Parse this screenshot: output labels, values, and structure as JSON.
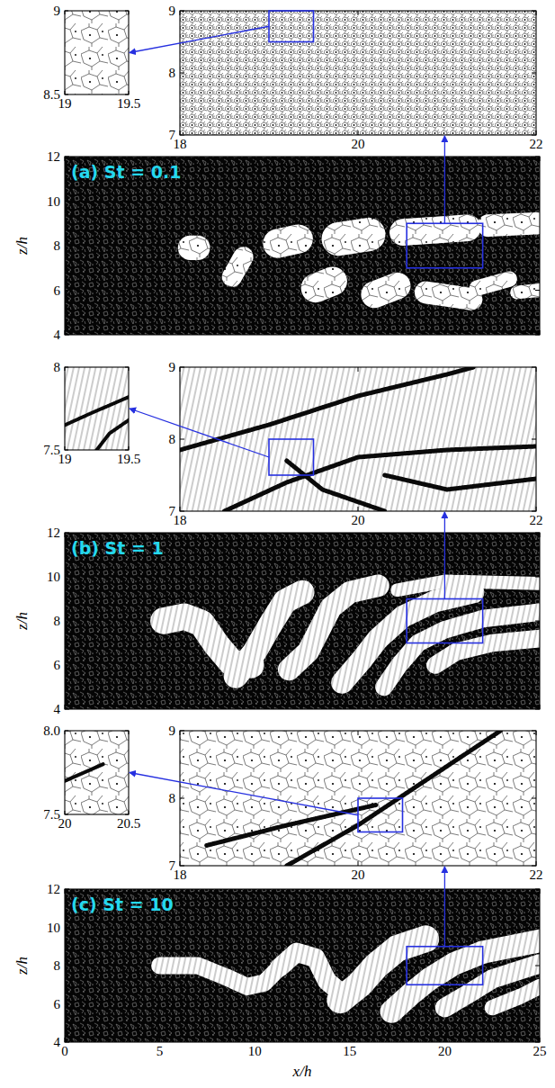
{
  "chart_data": [
    {
      "type": "voronoi",
      "title": "(a) St = 0.1",
      "y_label": "z/h",
      "xlim": [
        0,
        25
      ],
      "ylim": [
        4,
        12
      ],
      "xticks": [
        0,
        5,
        10,
        15,
        20,
        25
      ],
      "yticks": [
        4,
        6,
        8,
        10,
        12
      ],
      "tick_labels": "y",
      "voids": [
        {
          "points": [
            [
              6.6,
              7.9
            ],
            [
              7.0,
              7.9
            ]
          ],
          "width": 1.1
        },
        {
          "points": [
            [
              8.8,
              6.6
            ],
            [
              9.4,
              7.5
            ]
          ],
          "width": 0.9
        },
        {
          "points": [
            [
              11.2,
              8.1
            ],
            [
              12.3,
              8.3
            ]
          ],
          "width": 1.3
        },
        {
          "points": [
            [
              13.2,
              6.1
            ],
            [
              14.1,
              6.4
            ]
          ],
          "width": 1.3
        },
        {
          "points": [
            [
              14.4,
              8.3
            ],
            [
              16.0,
              8.5
            ]
          ],
          "width": 1.5
        },
        {
          "points": [
            [
              16.3,
              5.8
            ],
            [
              17.5,
              6.2
            ]
          ],
          "width": 1.2
        },
        {
          "points": [
            [
              17.8,
              8.6
            ],
            [
              21.2,
              8.8
            ]
          ],
          "width": 1.2
        },
        {
          "points": [
            [
              19.0,
              5.9
            ],
            [
              21.4,
              5.6
            ]
          ],
          "width": 1.0
        },
        {
          "points": [
            [
              22.3,
              8.9
            ],
            [
              24.8,
              9.0
            ]
          ],
          "width": 1.0
        },
        {
          "points": [
            [
              21.7,
              6.1
            ],
            [
              23.4,
              6.5
            ]
          ],
          "width": 0.7
        },
        {
          "points": [
            [
              23.8,
              5.9
            ],
            [
              25.0,
              6.0
            ]
          ],
          "width": 0.6
        }
      ],
      "insets": [
        {
          "xlim": [
            18,
            22
          ],
          "ylim": [
            7,
            9
          ],
          "xticks": [
            18,
            20,
            22
          ],
          "yticks": [
            7,
            8,
            9
          ]
        },
        {
          "xlim": [
            19,
            19.5
          ],
          "ylim": [
            8.5,
            9
          ],
          "xticks": [
            19,
            19.5
          ],
          "yticks": [
            8.5,
            9
          ]
        }
      ]
    },
    {
      "type": "voronoi",
      "title": "(b) St = 1",
      "y_label": "z/h",
      "xlim": [
        0,
        25
      ],
      "ylim": [
        4,
        12
      ],
      "xticks": [
        0,
        5,
        10,
        15,
        20,
        25
      ],
      "yticks": [
        4,
        6,
        8,
        10,
        12
      ],
      "tick_labels": "y",
      "voids": [
        {
          "points": [
            [
              5.2,
              8.0
            ],
            [
              6.3,
              8.2
            ],
            [
              7.2,
              7.9
            ],
            [
              8.0,
              6.9
            ],
            [
              8.8,
              6.1
            ],
            [
              9.8,
              6.0
            ]
          ],
          "width": 1.2
        },
        {
          "points": [
            [
              9.0,
              5.5
            ],
            [
              10.0,
              6.6
            ],
            [
              10.8,
              7.8
            ],
            [
              11.6,
              8.9
            ],
            [
              12.5,
              9.3
            ]
          ],
          "width": 1.1
        },
        {
          "points": [
            [
              11.8,
              5.8
            ],
            [
              12.8,
              6.6
            ],
            [
              13.4,
              7.6
            ],
            [
              14.0,
              8.6
            ],
            [
              15.0,
              9.3
            ],
            [
              16.5,
              9.6
            ]
          ],
          "width": 1.0
        },
        {
          "points": [
            [
              14.6,
              5.2
            ],
            [
              15.6,
              6.2
            ],
            [
              16.5,
              7.2
            ],
            [
              17.8,
              8.2
            ],
            [
              19.5,
              8.9
            ],
            [
              21.5,
              9.3
            ]
          ],
          "width": 1.0
        },
        {
          "points": [
            [
              16.8,
              5.0
            ],
            [
              17.6,
              6.0
            ],
            [
              18.6,
              7.0
            ],
            [
              20.0,
              7.6
            ],
            [
              22.0,
              8.1
            ],
            [
              25.0,
              8.4
            ]
          ],
          "width": 0.8
        },
        {
          "points": [
            [
              19.5,
              6.0
            ],
            [
              20.6,
              6.6
            ],
            [
              22.5,
              7.0
            ],
            [
              25.0,
              7.2
            ]
          ],
          "width": 0.8
        },
        {
          "points": [
            [
              17.5,
              9.4
            ],
            [
              20.0,
              9.8
            ],
            [
              25.0,
              9.7
            ]
          ],
          "width": 0.6
        }
      ],
      "insets": [
        {
          "xlim": [
            18,
            22
          ],
          "ylim": [
            7,
            9
          ],
          "xticks": [
            18,
            20,
            22
          ],
          "yticks": [
            7,
            8,
            9
          ],
          "filaments": [
            [
              [
                18.0,
                7.85
              ],
              [
                19.0,
                8.2
              ],
              [
                20.0,
                8.6
              ],
              [
                21.0,
                8.9
              ],
              [
                21.3,
                9.0
              ]
            ],
            [
              [
                18.5,
                7.0
              ],
              [
                19.2,
                7.4
              ],
              [
                20.0,
                7.75
              ],
              [
                21.0,
                7.85
              ],
              [
                22.0,
                7.9
              ]
            ],
            [
              [
                19.2,
                7.7
              ],
              [
                19.6,
                7.3
              ],
              [
                20.3,
                7.0
              ]
            ],
            [
              [
                20.3,
                7.5
              ],
              [
                21.0,
                7.3
              ],
              [
                22.0,
                7.45
              ]
            ]
          ]
        },
        {
          "xlim": [
            19,
            19.5
          ],
          "ylim": [
            7.5,
            8
          ],
          "xticks": [
            19,
            19.5
          ],
          "yticks": [
            7.5,
            8
          ],
          "filaments": [
            [
              [
                19.0,
                7.65
              ],
              [
                19.2,
                7.72
              ],
              [
                19.5,
                7.82
              ]
            ],
            [
              [
                19.25,
                7.5
              ],
              [
                19.35,
                7.6
              ],
              [
                19.5,
                7.68
              ]
            ]
          ]
        }
      ]
    },
    {
      "type": "voronoi",
      "title": "(c) St = 10",
      "x_label": "x/h",
      "y_label": "z/h",
      "xlim": [
        0,
        25
      ],
      "ylim": [
        4,
        12
      ],
      "xticks": [
        0,
        5,
        10,
        15,
        20,
        25
      ],
      "yticks": [
        4,
        6,
        8,
        10,
        12
      ],
      "voids": [
        {
          "points": [
            [
              5.0,
              8.0
            ],
            [
              7.0,
              8.0
            ],
            [
              8.5,
              7.4
            ],
            [
              9.6,
              6.9
            ],
            [
              10.5,
              7.1
            ],
            [
              11.3,
              7.9
            ]
          ],
          "width": 0.9
        },
        {
          "points": [
            [
              11.3,
              7.9
            ],
            [
              12.2,
              8.7
            ],
            [
              13.2,
              8.4
            ],
            [
              13.8,
              7.2
            ],
            [
              14.5,
              6.6
            ]
          ],
          "width": 1.0
        },
        {
          "points": [
            [
              14.5,
              6.2
            ],
            [
              15.5,
              7.0
            ],
            [
              16.4,
              8.0
            ],
            [
              17.5,
              8.9
            ],
            [
              19.0,
              9.4
            ]
          ],
          "width": 1.4
        },
        {
          "points": [
            [
              17.2,
              5.6
            ],
            [
              18.2,
              6.5
            ],
            [
              19.2,
              7.3
            ],
            [
              20.5,
              8.1
            ],
            [
              22.0,
              8.7
            ],
            [
              25.0,
              9.3
            ]
          ],
          "width": 1.2
        },
        {
          "points": [
            [
              20.0,
              5.8
            ],
            [
              21.2,
              6.5
            ],
            [
              22.5,
              7.3
            ],
            [
              25.0,
              8.1
            ]
          ],
          "width": 1.0
        },
        {
          "points": [
            [
              22.5,
              5.8
            ],
            [
              24.0,
              6.4
            ],
            [
              25.0,
              6.9
            ]
          ],
          "width": 0.8
        }
      ],
      "insets": [
        {
          "xlim": [
            18,
            22
          ],
          "ylim": [
            7,
            9
          ],
          "xticks": [
            18,
            20,
            22
          ],
          "yticks": [
            7,
            8,
            9
          ],
          "filaments": [
            [
              [
                19.2,
                7.0
              ],
              [
                20.0,
                7.6
              ],
              [
                20.8,
                8.3
              ],
              [
                21.6,
                9.0
              ]
            ],
            [
              [
                18.3,
                7.3
              ],
              [
                19.2,
                7.6
              ],
              [
                20.2,
                7.9
              ]
            ]
          ]
        },
        {
          "xlim": [
            20,
            20.5
          ],
          "ylim": [
            7.5,
            8
          ],
          "xticks": [
            20,
            20.5
          ],
          "yticks": [
            7.5,
            {
              "value": 8,
              "label": "8.0"
            }
          ],
          "filaments": [
            [
              [
                20.0,
                7.7
              ],
              [
                20.15,
                7.75
              ],
              [
                20.3,
                7.8
              ]
            ]
          ]
        }
      ]
    }
  ]
}
